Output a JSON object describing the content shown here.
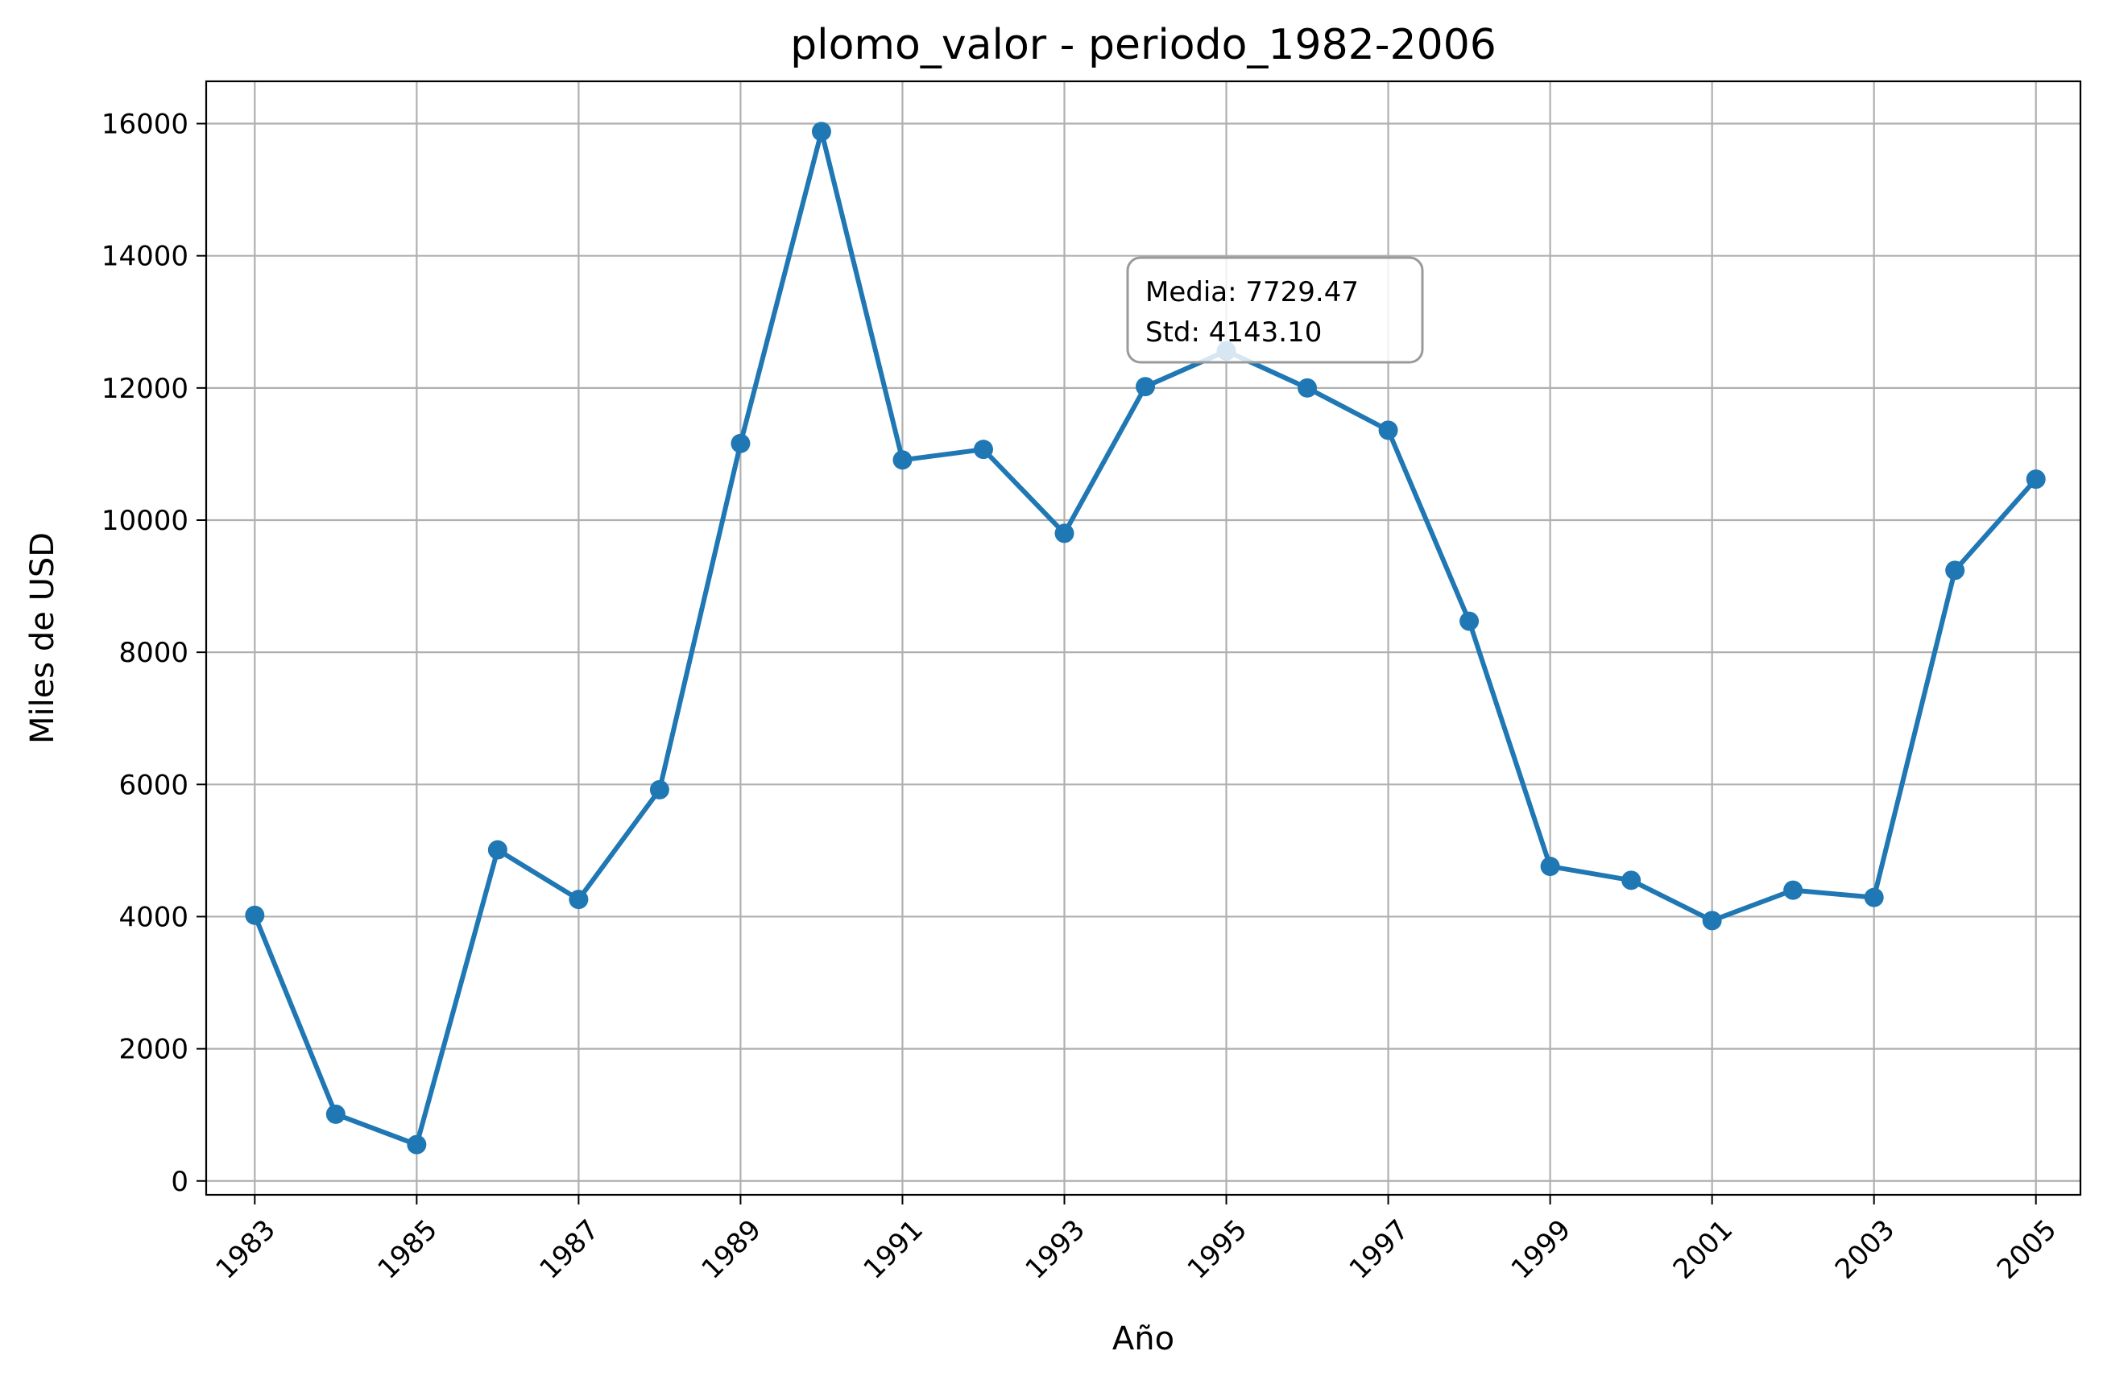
{
  "chart_data": {
    "type": "line",
    "title": "plomo_valor - periodo_1982-2006",
    "xlabel": "Año",
    "ylabel": "Miles de USD",
    "x": [
      1983,
      1984,
      1985,
      1986,
      1987,
      1988,
      1989,
      1990,
      1991,
      1992,
      1993,
      1994,
      1995,
      1996,
      1997,
      1998,
      1999,
      2000,
      2001,
      2002,
      2003,
      2004,
      2005
    ],
    "series": [
      {
        "values": [
          4020,
          1010,
          550,
          5010,
          4260,
          5920,
          11160,
          15880,
          10910,
          11070,
          9800,
          12020,
          12560,
          12000,
          11360,
          8470,
          4760,
          4550,
          3940,
          4400,
          4290,
          9240,
          10620
        ],
        "color": "#1f77b4",
        "marker": "circle"
      }
    ],
    "xticks": [
      "1983",
      "1985",
      "1987",
      "1989",
      "1991",
      "1993",
      "1995",
      "1997",
      "1999",
      "2001",
      "2003",
      "2005"
    ],
    "yticks": [
      "0",
      "2000",
      "4000",
      "6000",
      "8000",
      "10000",
      "12000",
      "14000",
      "16000"
    ],
    "xlim": [
      1982.4,
      2005.55
    ],
    "ylim": [
      -210,
      16640
    ],
    "grid": true,
    "annotation": {
      "lines": [
        "Media: 7729.47",
        "Std: 4143.10"
      ],
      "position": "top-center"
    }
  }
}
